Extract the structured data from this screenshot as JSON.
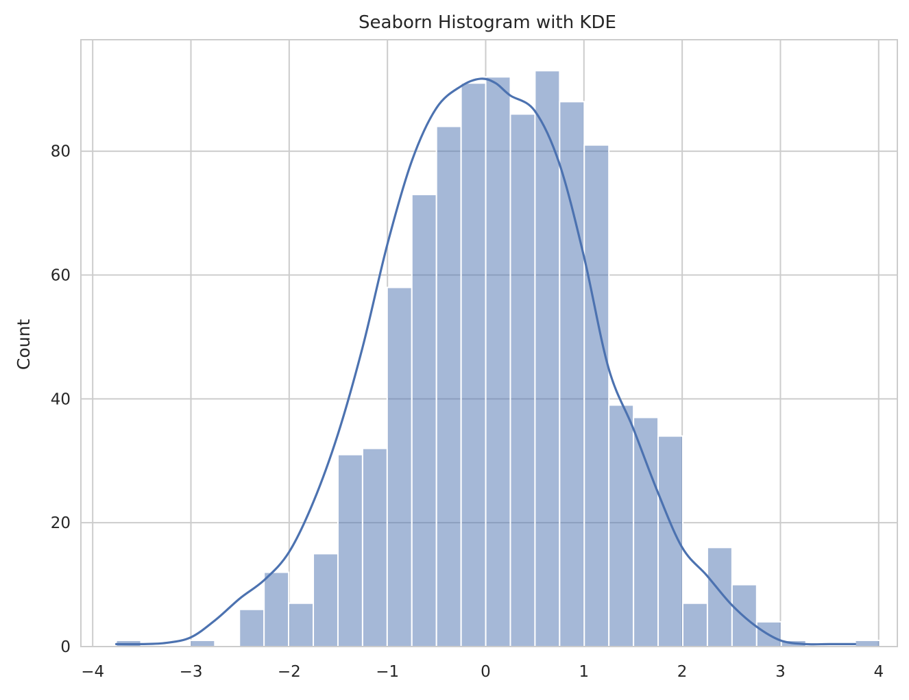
{
  "chart_data": {
    "type": "bar",
    "title": "Seaborn Histogram with KDE",
    "xlabel": "",
    "ylabel": "Count",
    "xlim": [
      -4.12,
      4.19
    ],
    "ylim": [
      0,
      98
    ],
    "xticks": [
      -4,
      -3,
      -2,
      -1,
      0,
      1,
      2,
      3,
      4
    ],
    "xtick_labels": [
      "−4",
      "−3",
      "−2",
      "−1",
      "0",
      "1",
      "2",
      "3",
      "4"
    ],
    "yticks": [
      0,
      20,
      40,
      60,
      80
    ],
    "ytick_labels": [
      "0",
      "20",
      "40",
      "60",
      "80"
    ],
    "grid": true,
    "legend": "none",
    "bar_color": "#4c72b0",
    "bins": {
      "start": -3.76,
      "width": 0.2507,
      "counts": [
        1,
        0,
        0,
        1,
        0,
        6,
        12,
        7,
        15,
        31,
        32,
        58,
        73,
        84,
        91,
        92,
        86,
        93,
        88,
        81,
        39,
        37,
        34,
        7,
        16,
        10,
        4,
        1,
        0,
        0,
        1
      ]
    },
    "kde": {
      "x": [
        -3.76,
        -3.5,
        -3.25,
        -3.0,
        -2.75,
        -2.5,
        -2.25,
        -2.0,
        -1.75,
        -1.5,
        -1.25,
        -1.0,
        -0.75,
        -0.5,
        -0.25,
        -0.05,
        0.1,
        0.25,
        0.5,
        0.75,
        1.0,
        1.25,
        1.5,
        1.75,
        2.0,
        2.25,
        2.5,
        2.75,
        3.0,
        3.25,
        3.5,
        3.76
      ],
      "y": [
        0.4,
        0.4,
        0.6,
        1.5,
        4.3,
        7.8,
        10.8,
        15.3,
        23.5,
        34.5,
        48.5,
        65.0,
        78.5,
        87.0,
        90.5,
        91.7,
        91.0,
        89.0,
        86.5,
        78.0,
        63.0,
        45.0,
        35.3,
        25.0,
        16.0,
        11.5,
        6.8,
        3.3,
        1.0,
        0.4,
        0.4,
        0.4
      ]
    }
  }
}
